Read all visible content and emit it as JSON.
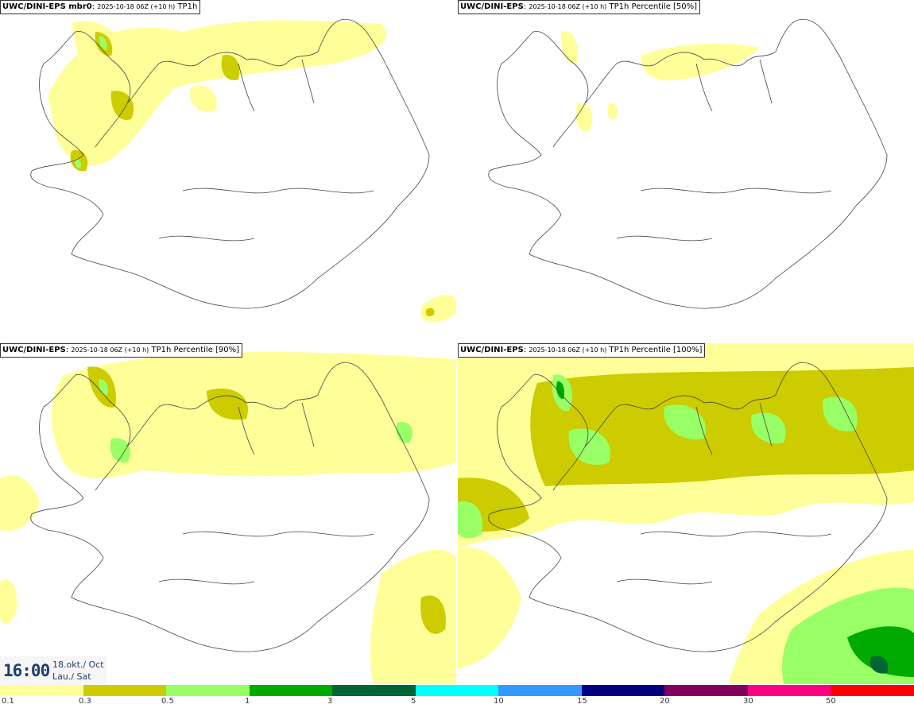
{
  "panels": [
    {
      "model": "UWC/DINI-EPS mbr0",
      "run": "2025-10-18 06Z (+10 h)",
      "field": "TP1h"
    },
    {
      "model": "UWC/DINI-EPS",
      "run": "2025-10-18 06Z (+10 h)",
      "field": "TP1h Percentile [50%]"
    },
    {
      "model": "UWC/DINI-EPS",
      "run": "2025-10-18 06Z (+10 h)",
      "field": "TP1h Percentile [90%]"
    },
    {
      "model": "UWC/DINI-EPS",
      "run": "2025-10-18 06Z (+10 h)",
      "field": "TP1h Percentile [100%]"
    }
  ],
  "valid_time": {
    "time": "16:00",
    "date": "18.okt./ Oct",
    "day": "Lau./ Sat"
  },
  "legend": {
    "colors": [
      "#ffff99",
      "#cccc00",
      "#99ff66",
      "#00aa00",
      "#006633",
      "#00ffff",
      "#3399ff",
      "#000080",
      "#800060",
      "#ff0080",
      "#ff0000"
    ],
    "ticks": [
      "0.1",
      "0.3",
      "0.5",
      "1",
      "3",
      "5",
      "10",
      "15",
      "20",
      "30",
      "50"
    ]
  },
  "colors": {
    "light_precip": "#ffff99",
    "moderate_precip": "#cccc00",
    "heavier_precip": "#99ff66",
    "heavy_precip": "#00aa00",
    "coastline": "#444444"
  }
}
